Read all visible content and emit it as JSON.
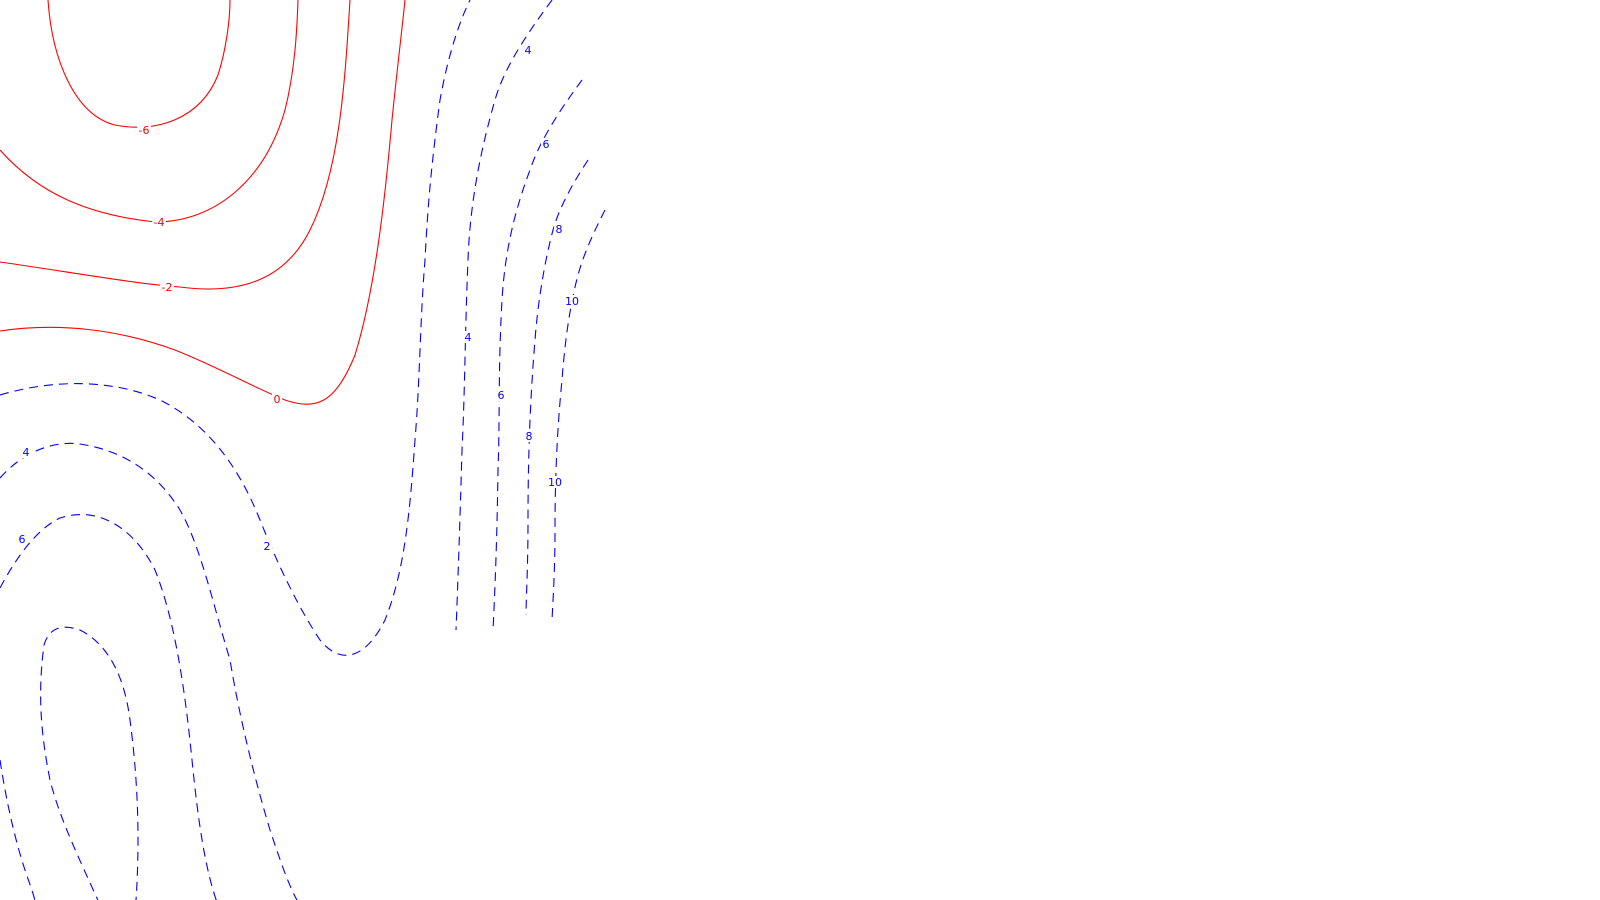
{
  "chart_data": {
    "type": "contour",
    "title": "",
    "xlabel": "",
    "ylabel": "",
    "colors": {
      "negative": "#ff0000",
      "positive": "#0000ff",
      "background": "#ffffff"
    },
    "line_styles": {
      "negative": "solid",
      "positive": "dashed"
    },
    "contour_levels": [
      -6,
      -4,
      -2,
      0,
      2,
      4,
      6,
      8,
      10
    ],
    "labels": [
      {
        "id": "neg6",
        "text": "-6",
        "sign": "negative"
      },
      {
        "id": "neg4",
        "text": "-4",
        "sign": "negative"
      },
      {
        "id": "neg2",
        "text": "-2",
        "sign": "negative"
      },
      {
        "id": "zero",
        "text": "0",
        "sign": "negative"
      },
      {
        "id": "p2",
        "text": "2",
        "sign": "positive"
      },
      {
        "id": "p4left",
        "text": "4",
        "sign": "positive"
      },
      {
        "id": "p6left",
        "text": "6",
        "sign": "positive"
      },
      {
        "id": "p4top",
        "text": "4",
        "sign": "positive"
      },
      {
        "id": "p6top",
        "text": "6",
        "sign": "positive"
      },
      {
        "id": "p8top",
        "text": "8",
        "sign": "positive"
      },
      {
        "id": "p10top",
        "text": "10",
        "sign": "positive"
      },
      {
        "id": "p4mid",
        "text": "4",
        "sign": "positive"
      },
      {
        "id": "p6mid",
        "text": "6",
        "sign": "positive"
      },
      {
        "id": "p8mid",
        "text": "8",
        "sign": "positive"
      },
      {
        "id": "p10mid",
        "text": "10",
        "sign": "positive"
      }
    ]
  }
}
